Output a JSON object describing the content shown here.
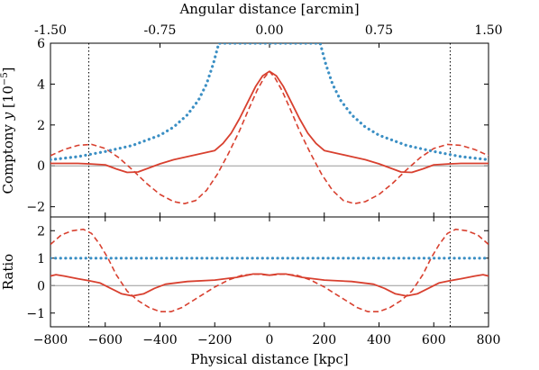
{
  "chart_data": [
    {
      "type": "line",
      "panel": "top",
      "ylabel_main": "Comptony ",
      "ylabel_var": "y",
      "ylabel_unit": " [10",
      "ylabel_exp": "−5",
      "ylabel_close": "]",
      "top_axis_label": "Angular distance [arcmin]",
      "top_ticks": [
        "-1.50",
        "-0.75",
        "0.00",
        "0.75",
        "1.50"
      ],
      "xlim": [
        -800,
        800
      ],
      "ylim": [
        -2.5,
        6
      ],
      "yticks": [
        "−2",
        "0",
        "2",
        "4",
        "6"
      ],
      "vlines_x": [
        -660,
        660
      ],
      "hline_y": 0,
      "series": [
        {
          "style": "solid",
          "color": "#d8402f",
          "points": [
            [
              -800,
              0.12
            ],
            [
              -700,
              0.12
            ],
            [
              -660,
              0.1
            ],
            [
              -600,
              0.05
            ],
            [
              -560,
              -0.15
            ],
            [
              -520,
              -0.32
            ],
            [
              -480,
              -0.3
            ],
            [
              -440,
              -0.1
            ],
            [
              -400,
              0.1
            ],
            [
              -350,
              0.3
            ],
            [
              -300,
              0.45
            ],
            [
              -250,
              0.6
            ],
            [
              -200,
              0.75
            ],
            [
              -170,
              1.1
            ],
            [
              -140,
              1.6
            ],
            [
              -110,
              2.3
            ],
            [
              -80,
              3.1
            ],
            [
              -50,
              3.9
            ],
            [
              -25,
              4.4
            ],
            [
              0,
              4.62
            ],
            [
              25,
              4.4
            ],
            [
              50,
              3.9
            ],
            [
              80,
              3.1
            ],
            [
              110,
              2.3
            ],
            [
              140,
              1.6
            ],
            [
              170,
              1.1
            ],
            [
              200,
              0.75
            ],
            [
              250,
              0.6
            ],
            [
              300,
              0.45
            ],
            [
              350,
              0.3
            ],
            [
              400,
              0.1
            ],
            [
              440,
              -0.1
            ],
            [
              480,
              -0.3
            ],
            [
              520,
              -0.32
            ],
            [
              560,
              -0.15
            ],
            [
              600,
              0.05
            ],
            [
              660,
              0.1
            ],
            [
              700,
              0.12
            ],
            [
              800,
              0.12
            ]
          ]
        },
        {
          "style": "dashed",
          "color": "#d8402f",
          "points": [
            [
              -800,
              0.5
            ],
            [
              -750,
              0.8
            ],
            [
              -700,
              1.0
            ],
            [
              -650,
              1.05
            ],
            [
              -600,
              0.85
            ],
            [
              -550,
              0.4
            ],
            [
              -500,
              -0.2
            ],
            [
              -450,
              -0.85
            ],
            [
              -400,
              -1.4
            ],
            [
              -350,
              -1.75
            ],
            [
              -310,
              -1.85
            ],
            [
              -270,
              -1.7
            ],
            [
              -230,
              -1.2
            ],
            [
              -190,
              -0.4
            ],
            [
              -150,
              0.6
            ],
            [
              -110,
              1.7
            ],
            [
              -75,
              2.8
            ],
            [
              -45,
              3.7
            ],
            [
              -20,
              4.3
            ],
            [
              0,
              4.62
            ],
            [
              20,
              4.3
            ],
            [
              45,
              3.7
            ],
            [
              75,
              2.8
            ],
            [
              110,
              1.7
            ],
            [
              150,
              0.6
            ],
            [
              190,
              -0.4
            ],
            [
              230,
              -1.2
            ],
            [
              270,
              -1.7
            ],
            [
              310,
              -1.85
            ],
            [
              350,
              -1.75
            ],
            [
              400,
              -1.4
            ],
            [
              450,
              -0.85
            ],
            [
              500,
              -0.2
            ],
            [
              550,
              0.4
            ],
            [
              600,
              0.85
            ],
            [
              650,
              1.05
            ],
            [
              700,
              1.0
            ],
            [
              750,
              0.8
            ],
            [
              800,
              0.5
            ]
          ]
        },
        {
          "style": "dotted",
          "color": "#3b8fc4",
          "points": [
            [
              -800,
              0.3
            ],
            [
              -700,
              0.45
            ],
            [
              -600,
              0.7
            ],
            [
              -500,
              1.0
            ],
            [
              -400,
              1.5
            ],
            [
              -350,
              1.9
            ],
            [
              -300,
              2.5
            ],
            [
              -260,
              3.2
            ],
            [
              -230,
              4.0
            ],
            [
              -205,
              5.0
            ],
            [
              -185,
              6.0
            ],
            [
              185,
              6.0
            ],
            [
              205,
              5.0
            ],
            [
              230,
              4.0
            ],
            [
              260,
              3.2
            ],
            [
              300,
              2.5
            ],
            [
              350,
              1.9
            ],
            [
              400,
              1.5
            ],
            [
              500,
              1.0
            ],
            [
              600,
              0.7
            ],
            [
              700,
              0.45
            ],
            [
              800,
              0.3
            ]
          ]
        }
      ]
    },
    {
      "type": "line",
      "panel": "bottom",
      "ylabel": "Ratio",
      "xlabel": "Physical distance [kpc]",
      "xlim": [
        -800,
        800
      ],
      "ylim": [
        -1.5,
        2.5
      ],
      "yticks": [
        "−1",
        "0",
        "1",
        "2"
      ],
      "xticks": [
        "−800",
        "−600",
        "−400",
        "−200",
        "0",
        "200",
        "400",
        "600",
        "800"
      ],
      "xtick_values": [
        -800,
        -600,
        -400,
        -200,
        0,
        200,
        400,
        600,
        800
      ],
      "vlines_x": [
        -660,
        660
      ],
      "hline_y": 0,
      "series": [
        {
          "style": "solid",
          "color": "#d8402f",
          "points": [
            [
              -800,
              0.35
            ],
            [
              -780,
              0.4
            ],
            [
              -750,
              0.35
            ],
            [
              -700,
              0.25
            ],
            [
              -660,
              0.18
            ],
            [
              -620,
              0.1
            ],
            [
              -580,
              -0.1
            ],
            [
              -540,
              -0.3
            ],
            [
              -500,
              -0.38
            ],
            [
              -460,
              -0.3
            ],
            [
              -420,
              -0.1
            ],
            [
              -380,
              0.05
            ],
            [
              -300,
              0.15
            ],
            [
              -200,
              0.2
            ],
            [
              -120,
              0.3
            ],
            [
              -60,
              0.42
            ],
            [
              -30,
              0.42
            ],
            [
              0,
              0.38
            ],
            [
              30,
              0.42
            ],
            [
              60,
              0.42
            ],
            [
              120,
              0.3
            ],
            [
              200,
              0.2
            ],
            [
              300,
              0.15
            ],
            [
              380,
              0.05
            ],
            [
              420,
              -0.1
            ],
            [
              460,
              -0.3
            ],
            [
              500,
              -0.38
            ],
            [
              540,
              -0.3
            ],
            [
              580,
              -0.1
            ],
            [
              620,
              0.1
            ],
            [
              660,
              0.18
            ],
            [
              700,
              0.25
            ],
            [
              750,
              0.35
            ],
            [
              780,
              0.4
            ],
            [
              800,
              0.35
            ]
          ]
        },
        {
          "style": "dashed",
          "color": "#d8402f",
          "points": [
            [
              -800,
              1.5
            ],
            [
              -760,
              1.85
            ],
            [
              -720,
              2.0
            ],
            [
              -680,
              2.05
            ],
            [
              -650,
              1.9
            ],
            [
              -620,
              1.5
            ],
            [
              -590,
              1.0
            ],
            [
              -560,
              0.4
            ],
            [
              -520,
              -0.2
            ],
            [
              -480,
              -0.55
            ],
            [
              -440,
              -0.8
            ],
            [
              -400,
              -0.95
            ],
            [
              -360,
              -0.95
            ],
            [
              -320,
              -0.8
            ],
            [
              -280,
              -0.55
            ],
            [
              -240,
              -0.3
            ],
            [
              -200,
              -0.05
            ],
            [
              -150,
              0.2
            ],
            [
              -100,
              0.38
            ],
            [
              -50,
              0.42
            ],
            [
              0,
              0.38
            ],
            [
              50,
              0.42
            ],
            [
              100,
              0.38
            ],
            [
              150,
              0.2
            ],
            [
              200,
              -0.05
            ],
            [
              240,
              -0.3
            ],
            [
              280,
              -0.55
            ],
            [
              320,
              -0.8
            ],
            [
              360,
              -0.95
            ],
            [
              400,
              -0.95
            ],
            [
              440,
              -0.8
            ],
            [
              480,
              -0.55
            ],
            [
              520,
              -0.2
            ],
            [
              560,
              0.4
            ],
            [
              590,
              1.0
            ],
            [
              620,
              1.5
            ],
            [
              650,
              1.9
            ],
            [
              680,
              2.05
            ],
            [
              720,
              2.0
            ],
            [
              760,
              1.85
            ],
            [
              800,
              1.5
            ]
          ]
        },
        {
          "style": "dotted",
          "color": "#3b8fc4",
          "points": [
            [
              -800,
              1.0
            ],
            [
              800,
              1.0
            ]
          ]
        }
      ]
    }
  ]
}
